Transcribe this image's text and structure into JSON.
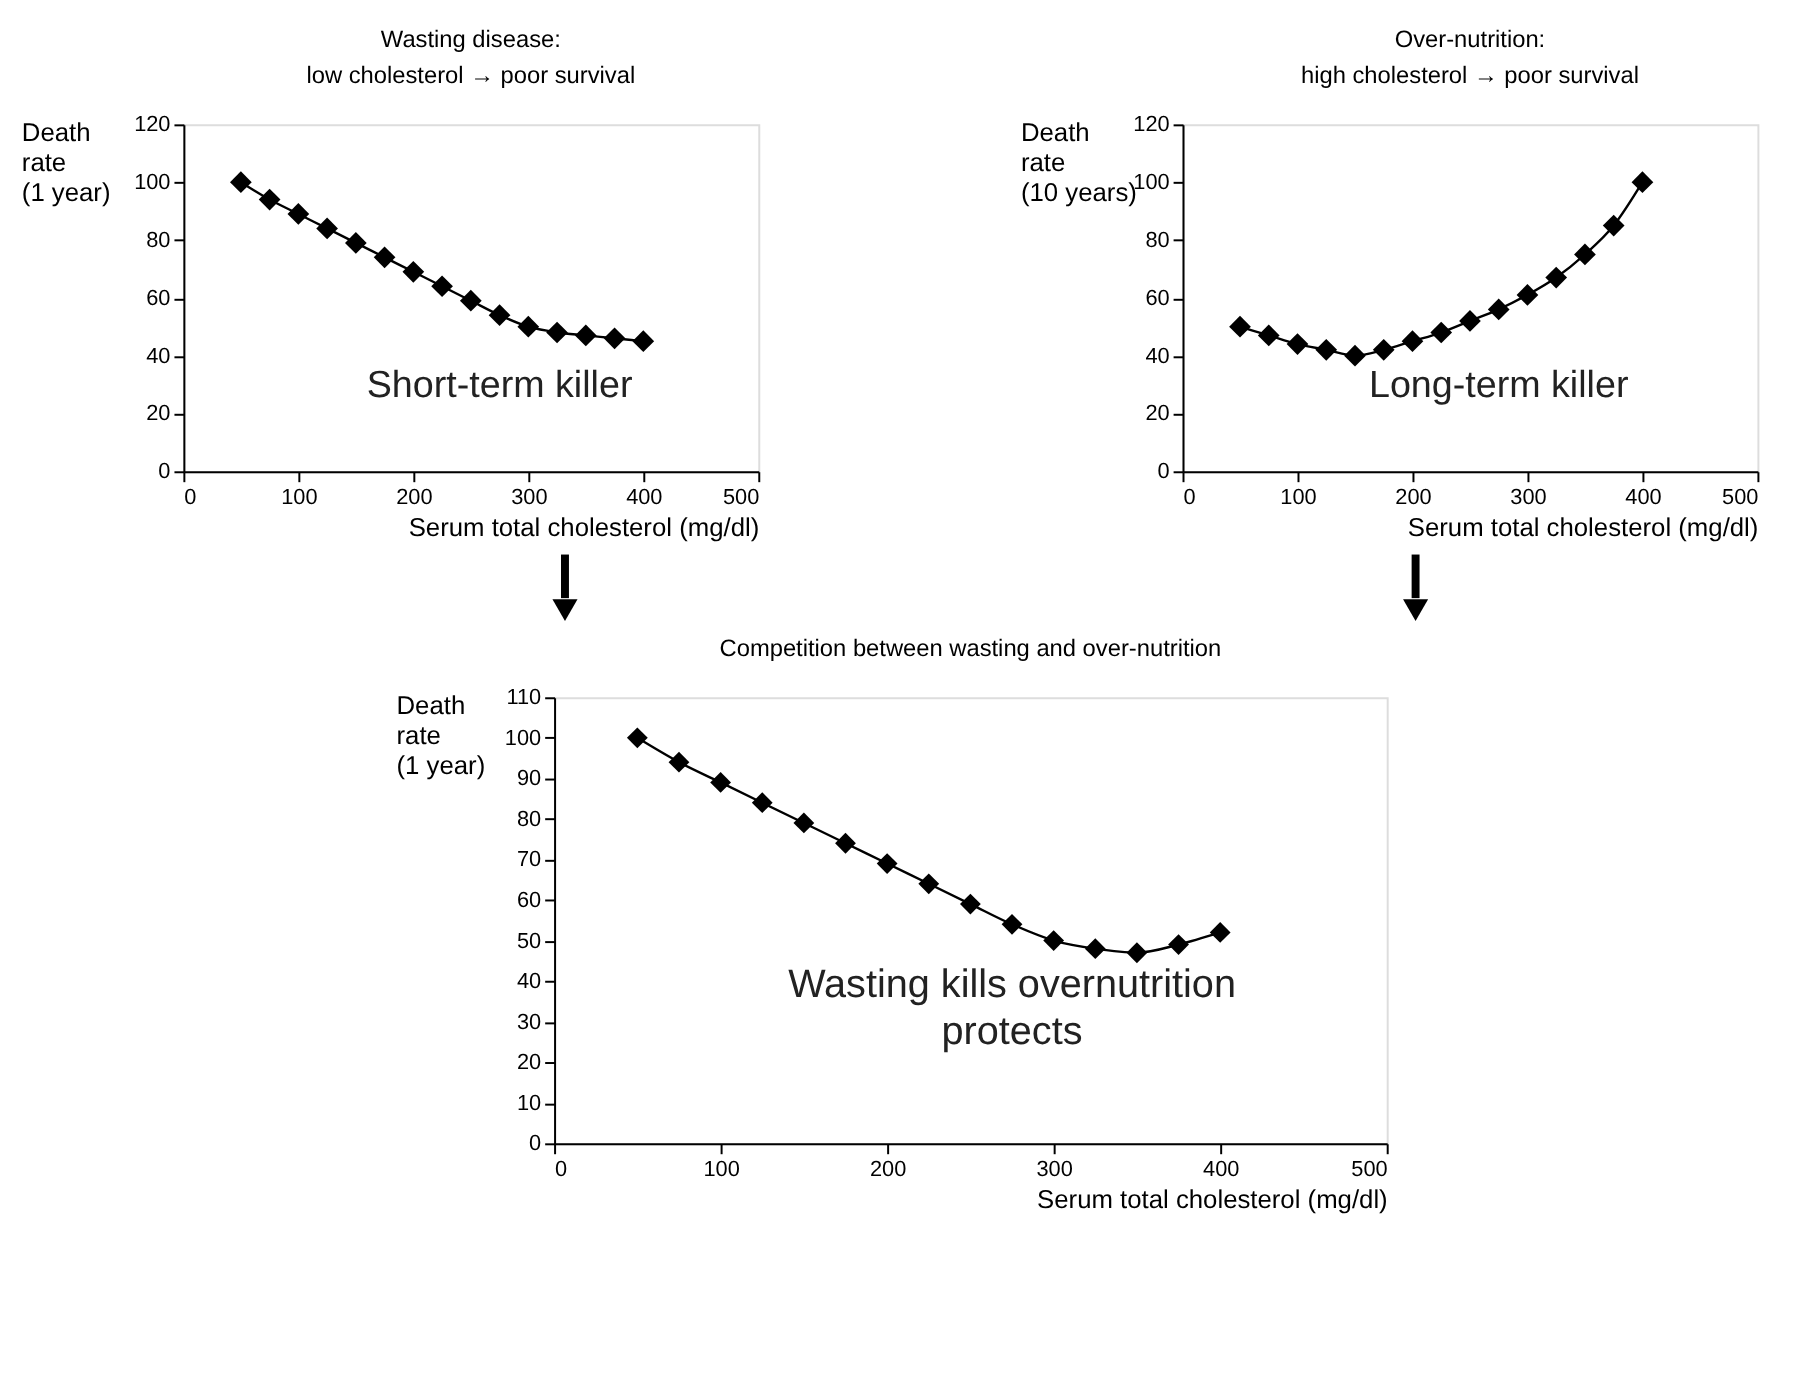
{
  "chart_data": [
    {
      "type": "line",
      "title": "Wasting disease:\nlow cholesterol → poor survival",
      "xlabel": "Serum total cholesterol (mg/dl)",
      "ylabel": "Death\nrate\n(1 year)",
      "x": [
        50,
        75,
        100,
        125,
        150,
        175,
        200,
        225,
        250,
        275,
        300,
        325,
        350,
        375,
        400
      ],
      "series": [
        {
          "color": "#000000",
          "values": [
            100,
            94,
            89,
            84,
            79,
            74,
            69,
            64,
            59,
            54,
            50,
            48,
            47,
            46,
            45
          ]
        }
      ],
      "xlim": [
        0,
        500
      ],
      "xticks": [
        0,
        100,
        200,
        300,
        400,
        500
      ],
      "ylim": [
        0,
        120
      ],
      "yticks": [
        0,
        20,
        40,
        60,
        80,
        100,
        120
      ],
      "marker": "diamond",
      "line_style": "solid",
      "grid": false,
      "annotations": [
        "Short-term killer"
      ]
    },
    {
      "type": "line",
      "title": "Over-nutrition:\nhigh cholesterol → poor survival",
      "xlabel": "Serum total cholesterol (mg/dl)",
      "ylabel": "Death\nrate\n(10 years)",
      "x": [
        50,
        75,
        100,
        125,
        150,
        175,
        200,
        225,
        250,
        275,
        300,
        325,
        350,
        375,
        400
      ],
      "series": [
        {
          "color": "#000000",
          "values": [
            50,
            47,
            44,
            42,
            40,
            42,
            45,
            48,
            52,
            56,
            61,
            67,
            75,
            85,
            100
          ]
        }
      ],
      "xlim": [
        0,
        500
      ],
      "xticks": [
        0,
        100,
        200,
        300,
        400,
        500
      ],
      "ylim": [
        0,
        120
      ],
      "yticks": [
        0,
        20,
        40,
        60,
        80,
        100,
        120
      ],
      "marker": "diamond",
      "line_style": "solid",
      "grid": false,
      "annotations": [
        "Long-term killer"
      ]
    },
    {
      "type": "line",
      "title": "Competition between wasting and over-nutrition",
      "xlabel": "Serum total cholesterol (mg/dl)",
      "ylabel": "Death\nrate\n(1 year)",
      "x": [
        50,
        75,
        100,
        125,
        150,
        175,
        200,
        225,
        250,
        275,
        300,
        325,
        350,
        375,
        400
      ],
      "series": [
        {
          "color": "#000000",
          "values": [
            100,
            94,
            89,
            84,
            79,
            74,
            69,
            64,
            59,
            54,
            50,
            48,
            47,
            49,
            52
          ]
        }
      ],
      "xlim": [
        0,
        500
      ],
      "xticks": [
        0,
        100,
        200,
        300,
        400,
        500
      ],
      "ylim": [
        0,
        110
      ],
      "yticks": [
        0,
        10,
        20,
        30,
        40,
        50,
        60,
        70,
        80,
        90,
        100,
        110
      ],
      "marker": "diamond",
      "line_style": "solid",
      "grid": false,
      "annotations": [
        "Wasting kills overnutrition\nprotects"
      ]
    }
  ]
}
